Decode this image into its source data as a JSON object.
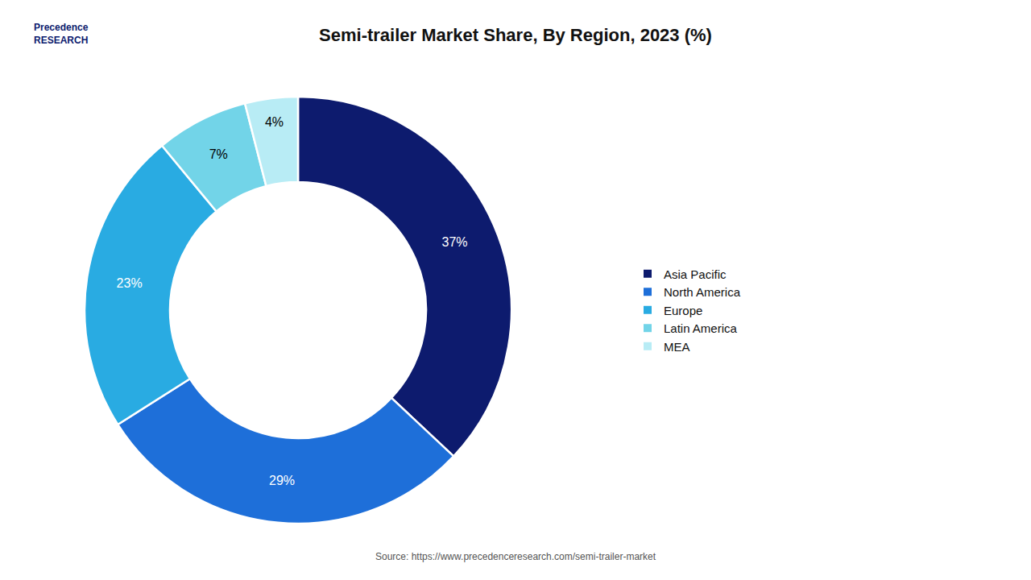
{
  "chart_data": {
    "type": "pie",
    "title": "Semi-trailer Market Share, By Region, 2023 (%)",
    "categories": [
      "Asia Pacific",
      "North America",
      "Europe",
      "Latin America",
      "MEA"
    ],
    "values": [
      37,
      29,
      23,
      7,
      4
    ],
    "value_labels": [
      "37%",
      "29%",
      "23%",
      "7%",
      "4%"
    ],
    "colors": [
      "#0d1b6e",
      "#1e6fd9",
      "#29abe2",
      "#72d4e8",
      "#b8ecf5"
    ],
    "data_labels": true,
    "legend": "right",
    "annotations": [
      "Precedence\nRESEARCH",
      "Source: https://www.precedenceresearch.com/semi-trailer-market"
    ]
  }
}
